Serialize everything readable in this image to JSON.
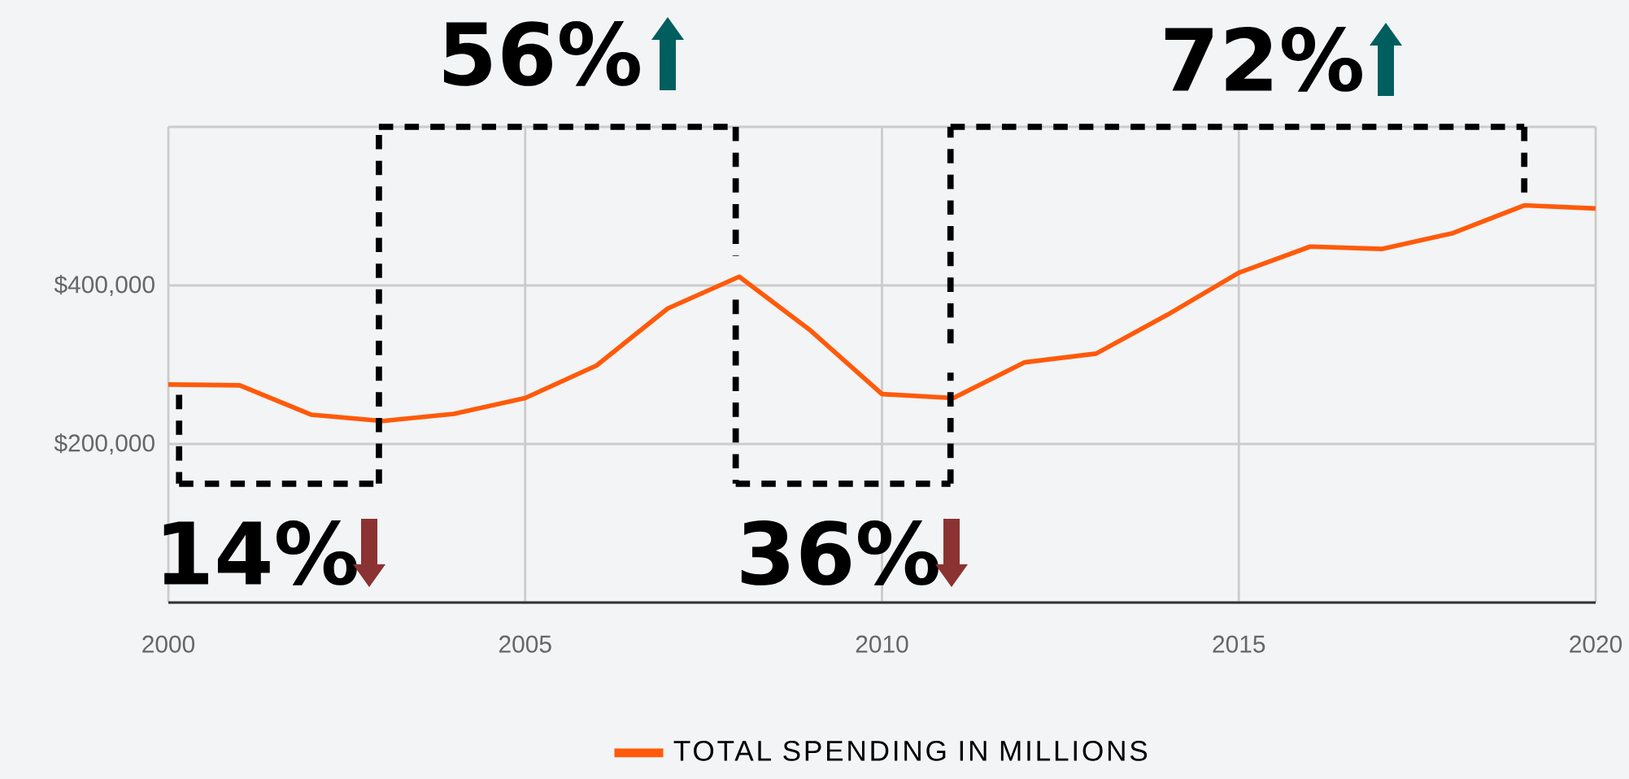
{
  "chart_data": {
    "type": "line",
    "x": [
      2000,
      2001,
      2002,
      2003,
      2004,
      2005,
      2006,
      2007,
      2008,
      2009,
      2010,
      2011,
      2012,
      2013,
      2014,
      2015,
      2016,
      2017,
      2018,
      2019,
      2020
    ],
    "series": [
      {
        "name": "TOTAL SPENDING IN MILLIONS",
        "color": "#ff5a0a",
        "values": [
          275000,
          274000,
          237000,
          229000,
          238000,
          258000,
          299000,
          371000,
          411000,
          343000,
          263000,
          258000,
          303000,
          314000,
          363000,
          416000,
          449000,
          446000,
          466000,
          501000,
          497000
        ]
      }
    ],
    "xlim": [
      2000,
      2020
    ],
    "xticks": [
      2000,
      2005,
      2010,
      2015,
      2020
    ],
    "ylim": [
      0,
      600000
    ],
    "yticks": [
      {
        "value": 0,
        "label": null
      },
      {
        "value": 200000,
        "label": "$200,000"
      },
      {
        "value": 400000,
        "label": "$400,000"
      },
      {
        "value": 600000,
        "label": null
      }
    ],
    "annotations": [
      "14%",
      "56%",
      "36%",
      "72%"
    ],
    "grid": true,
    "legend": "bottom"
  }
}
